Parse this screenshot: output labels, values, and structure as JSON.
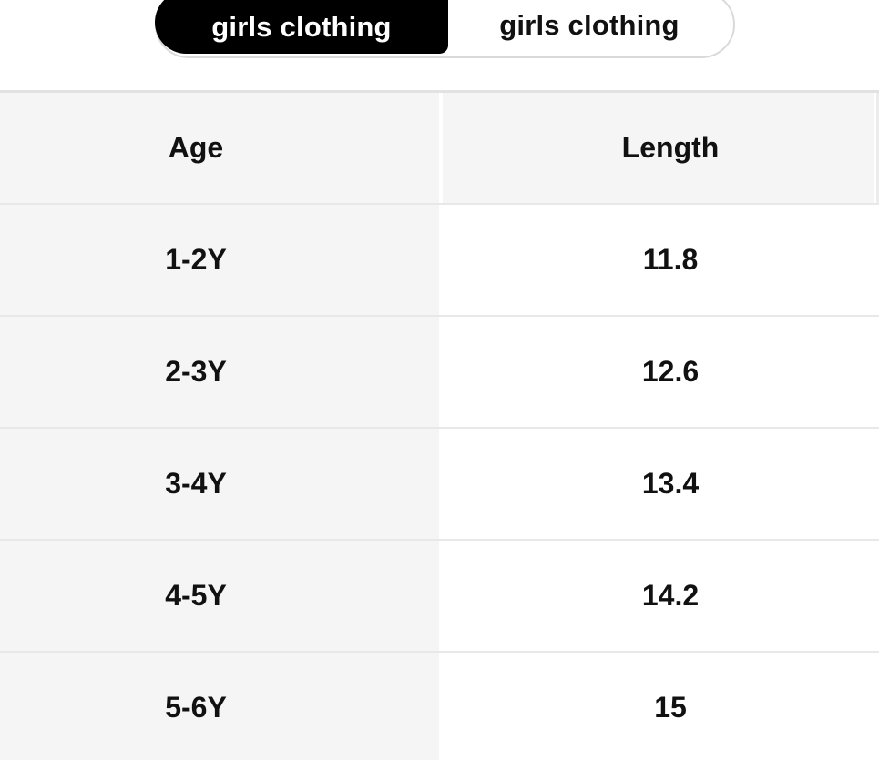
{
  "tabs": {
    "items": [
      {
        "label": "girls clothing",
        "active": true
      },
      {
        "label": "girls clothing",
        "active": false
      }
    ]
  },
  "size_table": {
    "columns": {
      "age": "Age",
      "length": "Length"
    },
    "rows": [
      {
        "age": "1-2Y",
        "length": "11.8"
      },
      {
        "age": "2-3Y",
        "length": "12.6"
      },
      {
        "age": "3-4Y",
        "length": "13.4"
      },
      {
        "age": "4-5Y",
        "length": "14.2"
      },
      {
        "age": "5-6Y",
        "length": "15"
      }
    ]
  },
  "colors": {
    "tab_active_bg": "#000000",
    "tab_active_text": "#ffffff",
    "tab_border": "#d9d9d9",
    "text": "#111111",
    "header_bg": "#f5f5f5",
    "divider": "#e8e8e8"
  }
}
